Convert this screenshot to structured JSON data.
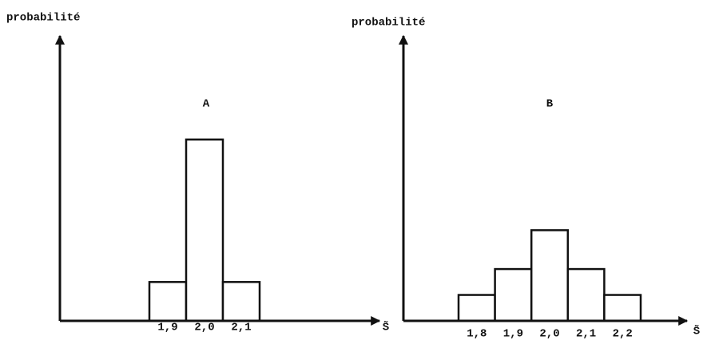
{
  "chart_data": [
    {
      "type": "bar",
      "title": "A",
      "y_label": "probabilité",
      "x_label": "S̃",
      "categories": [
        "1,9",
        "2,0",
        "2,1"
      ],
      "values": [
        0.15,
        0.7,
        0.15
      ],
      "color": "#ffffff",
      "ylim": [
        0,
        1.1
      ]
    },
    {
      "type": "bar",
      "title": "B",
      "y_label": "probabilité",
      "x_label": "S̃",
      "categories": [
        "1,8",
        "1,9",
        "2,0",
        "2,1",
        "2,2"
      ],
      "values": [
        0.1,
        0.2,
        0.35,
        0.2,
        0.1
      ],
      "color": "#ffffff",
      "ylim": [
        0,
        1.1
      ]
    }
  ]
}
